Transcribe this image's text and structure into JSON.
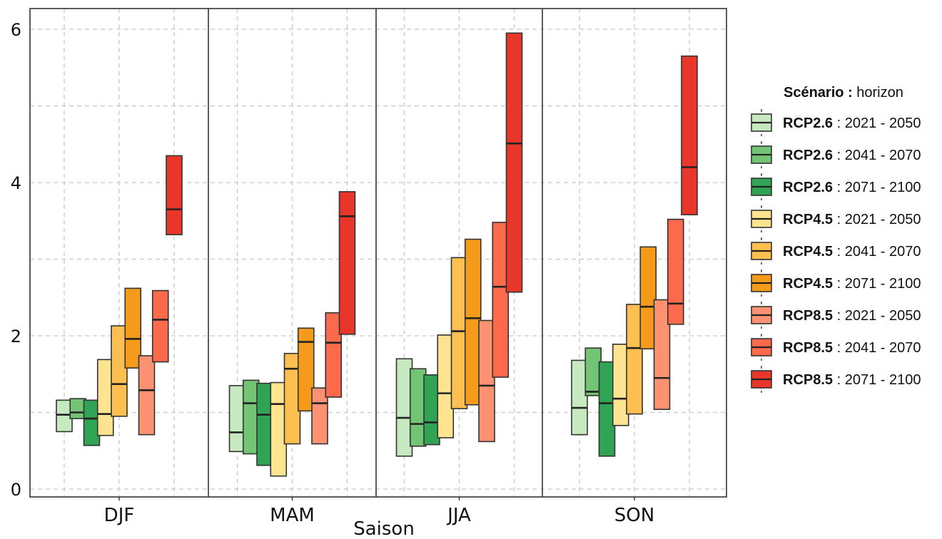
{
  "chart_data": {
    "type": "crossbar",
    "xlabel": "Saison",
    "ylabel": "",
    "ylim": [
      0,
      6.1
    ],
    "yticks": [
      0,
      2,
      4,
      6
    ],
    "grid": true,
    "facets": [
      "DJF",
      "MAM",
      "JJA",
      "SON"
    ],
    "legend": {
      "title_bold": "Scénario :",
      "title_rest": " horizon",
      "placement": "right",
      "entries": [
        {
          "scenario": "RCP2.6",
          "horizon": " : 2021 - 2050",
          "color": "#c7e9c0"
        },
        {
          "scenario": "RCP2.6",
          "horizon": " : 2041 - 2070",
          "color": "#74c476"
        },
        {
          "scenario": "RCP2.6",
          "horizon": " : 2071 - 2100",
          "color": "#31a354"
        },
        {
          "scenario": "RCP4.5",
          "horizon": " : 2021 - 2050",
          "color": "#fee391"
        },
        {
          "scenario": "RCP4.5",
          "horizon": " : 2041 - 2070",
          "color": "#fdbf4f"
        },
        {
          "scenario": "RCP4.5",
          "horizon": " : 2071 - 2100",
          "color": "#f59b1c"
        },
        {
          "scenario": "RCP8.5",
          "horizon": " : 2021 - 2050",
          "color": "#fc9272"
        },
        {
          "scenario": "RCP8.5",
          "horizon": " : 2041 - 2070",
          "color": "#fb6a4a"
        },
        {
          "scenario": "RCP8.5",
          "horizon": " : 2071 - 2100",
          "color": "#e8372a"
        }
      ]
    },
    "series": [
      {
        "facet": "DJF",
        "bars": [
          {
            "low": 0.75,
            "mid": 0.97,
            "high": 1.16
          },
          {
            "low": 0.92,
            "mid": 1.0,
            "high": 1.18
          },
          {
            "low": 0.57,
            "mid": 0.92,
            "high": 1.16
          },
          {
            "low": 0.7,
            "mid": 0.98,
            "high": 1.69
          },
          {
            "low": 0.95,
            "mid": 1.37,
            "high": 2.13
          },
          {
            "low": 1.58,
            "mid": 1.96,
            "high": 2.62
          },
          {
            "low": 0.71,
            "mid": 1.29,
            "high": 1.74
          },
          {
            "low": 1.66,
            "mid": 2.21,
            "high": 2.59
          },
          {
            "low": 3.32,
            "mid": 3.65,
            "high": 4.35
          }
        ]
      },
      {
        "facet": "MAM",
        "bars": [
          {
            "low": 0.49,
            "mid": 0.74,
            "high": 1.35
          },
          {
            "low": 0.46,
            "mid": 1.12,
            "high": 1.42
          },
          {
            "low": 0.31,
            "mid": 0.97,
            "high": 1.38
          },
          {
            "low": 0.17,
            "mid": 1.11,
            "high": 1.39
          },
          {
            "low": 0.59,
            "mid": 1.57,
            "high": 1.77
          },
          {
            "low": 1.02,
            "mid": 1.92,
            "high": 2.1
          },
          {
            "low": 0.59,
            "mid": 1.12,
            "high": 1.32
          },
          {
            "low": 1.2,
            "mid": 1.91,
            "high": 2.3
          },
          {
            "low": 2.02,
            "mid": 3.56,
            "high": 3.88
          }
        ]
      },
      {
        "facet": "JJA",
        "bars": [
          {
            "low": 0.43,
            "mid": 0.93,
            "high": 1.7
          },
          {
            "low": 0.56,
            "mid": 0.85,
            "high": 1.57
          },
          {
            "low": 0.58,
            "mid": 0.87,
            "high": 1.49
          },
          {
            "low": 0.67,
            "mid": 1.25,
            "high": 2.01
          },
          {
            "low": 1.05,
            "mid": 2.06,
            "high": 3.02
          },
          {
            "low": 1.1,
            "mid": 2.23,
            "high": 3.26
          },
          {
            "low": 0.62,
            "mid": 1.35,
            "high": 2.2
          },
          {
            "low": 1.46,
            "mid": 2.64,
            "high": 3.48
          },
          {
            "low": 2.57,
            "mid": 4.51,
            "high": 5.95
          }
        ]
      },
      {
        "facet": "SON",
        "bars": [
          {
            "low": 0.71,
            "mid": 1.06,
            "high": 1.68
          },
          {
            "low": 1.22,
            "mid": 1.27,
            "high": 1.84
          },
          {
            "low": 0.43,
            "mid": 1.12,
            "high": 1.66
          },
          {
            "low": 0.83,
            "mid": 1.18,
            "high": 1.89
          },
          {
            "low": 0.98,
            "mid": 1.84,
            "high": 2.41
          },
          {
            "low": 1.83,
            "mid": 2.38,
            "high": 3.16
          },
          {
            "low": 1.04,
            "mid": 1.45,
            "high": 2.47
          },
          {
            "low": 2.15,
            "mid": 2.42,
            "high": 3.52
          },
          {
            "low": 3.58,
            "mid": 4.2,
            "high": 5.65
          }
        ]
      }
    ]
  }
}
